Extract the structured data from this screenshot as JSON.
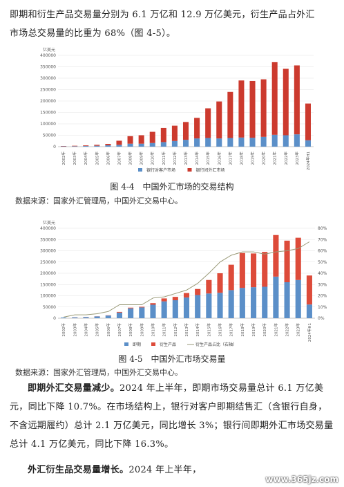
{
  "intro": {
    "line1": "即期和衍生产品交易量分别为 6.1 万亿和 12.9 万亿美元，衍生产品占外汇",
    "line2": "市场总交易量的比重为 68%（图 4-5）。"
  },
  "fig4": {
    "caption": "图 4-4　中国外汇市场的交易结构",
    "source": "数据来源：国家外汇管理局，中国外汇交易中心。"
  },
  "fig5": {
    "caption": "图 4-5　中国外汇市场交易量",
    "source": "数据来源：国家外汇管理局，中国外汇交易中心。"
  },
  "body": {
    "p1_bold": "即期外汇交易量减少。",
    "p1_text": "2024 年上半年，即期市场交易量总计 6.1 万亿美元，同比下降 10.7%。在市场结构上，银行对客户即期结售汇（含银行自身，不含远期履约）总计 2.1 万亿美元，同比增长 3%；银行间即期外汇市场交易量总计 4.1 万亿美元，同比下降 16.3%。",
    "p2_bold": "外汇衍生品交易量增长。",
    "p2_text": "2024 年上半年，"
  },
  "watermark": "www.365jz.com",
  "chart_data": [
    {
      "type": "bar",
      "stacked": true,
      "ylabel": "亿美元",
      "ylim": [
        0,
        400000
      ],
      "yticks": [
        0,
        50000,
        100000,
        150000,
        200000,
        250000,
        300000,
        350000,
        400000
      ],
      "categories": [
        "2002年",
        "2003年",
        "2004年",
        "2005年",
        "2006年",
        "2007年",
        "2008年",
        "2009年",
        "2010年",
        "2011年",
        "2012年",
        "2013年",
        "2014年",
        "2015年",
        "2016年",
        "2017年",
        "2018年",
        "2019年",
        "2020年",
        "2021年",
        "2022年",
        "2023年",
        "2024年H1"
      ],
      "series": [
        {
          "name": "银行对客户市场",
          "color": "#5b8fc8",
          "values": [
            1500,
            2000,
            3000,
            4000,
            6000,
            8000,
            13000,
            13000,
            16000,
            20000,
            25000,
            30000,
            36000,
            38000,
            36000,
            38000,
            40000,
            39000,
            43000,
            52000,
            50000,
            54000,
            28000
          ]
        },
        {
          "name": "银行间外汇市场",
          "color": "#cc3a2e",
          "values": [
            1500,
            2000,
            2500,
            4000,
            6000,
            18000,
            33000,
            37000,
            49000,
            62000,
            67000,
            78000,
            90000,
            130000,
            162000,
            202000,
            250000,
            249000,
            252000,
            318000,
            291000,
            302000,
            161000
          ]
        }
      ],
      "legend": "bottom"
    },
    {
      "type": "bar",
      "stacked": true,
      "ylabel": "亿美元",
      "ylim": [
        0,
        400000
      ],
      "yticks": [
        0,
        50000,
        100000,
        150000,
        200000,
        250000,
        300000,
        350000,
        400000
      ],
      "y2ticks": [
        "0%",
        "10%",
        "20%",
        "30%",
        "40%",
        "50%",
        "60%",
        "70%",
        "80%"
      ],
      "y2lim": [
        0,
        80
      ],
      "categories": [
        "2002年",
        "2003年",
        "2004年",
        "2005年",
        "2006年",
        "2007年",
        "2008年",
        "2009年",
        "2010年",
        "2011年",
        "2012年",
        "2013年",
        "2014年",
        "2015年",
        "2016年",
        "2017年",
        "2018年",
        "2019年",
        "2020年",
        "2021年",
        "2022年",
        "2023年",
        "2024年H1"
      ],
      "series": [
        {
          "name": "即期",
          "color": "#5b8fc8",
          "values": [
            3000,
            4000,
            5000,
            8000,
            12000,
            25000,
            44000,
            48000,
            60000,
            75000,
            80000,
            92000,
            103000,
            110000,
            113000,
            125000,
            135000,
            138000,
            140000,
            185000,
            160000,
            170000,
            61000
          ]
        },
        {
          "name": "衍生产品",
          "color": "#dd4b3a",
          "values": [
            0,
            500,
            500,
            500,
            1000,
            3000,
            3000,
            3000,
            7000,
            13000,
            15000,
            20000,
            27000,
            60000,
            87000,
            113000,
            155000,
            150000,
            155000,
            185000,
            185000,
            188000,
            129000
          ]
        },
        {
          "name": "衍生产品占比（右轴）",
          "color": "#9a9a78",
          "type": "line",
          "axis": "right",
          "values": [
            1,
            3,
            3,
            4,
            6,
            12,
            12,
            12,
            18,
            19,
            22,
            25,
            31,
            40,
            50,
            56,
            59,
            59,
            57,
            59,
            60,
            62,
            68
          ]
        }
      ],
      "legend": "bottom"
    }
  ]
}
